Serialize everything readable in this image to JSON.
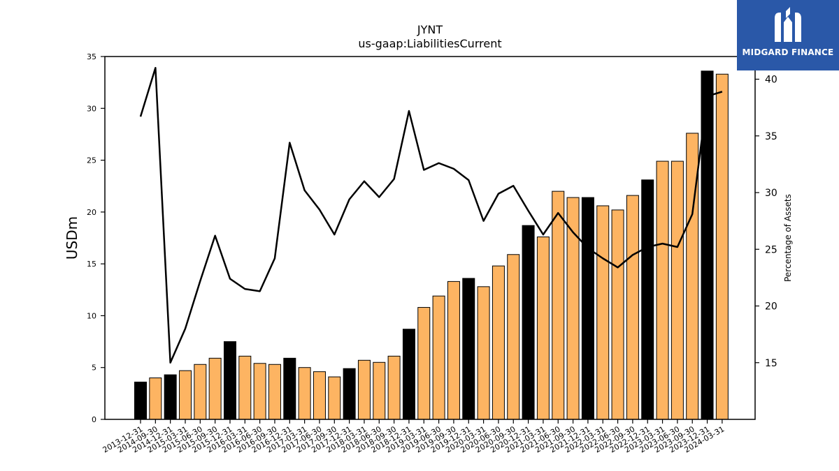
{
  "chart_data": {
    "type": "bar",
    "title": "JYNT",
    "subtitle": "us-gaap:LiabilitiesCurrent",
    "ylabel": "USDm",
    "y2label": "Percentage of Assets",
    "ylim": [
      0,
      35
    ],
    "y2lim": [
      10,
      42
    ],
    "yticks": [
      0,
      5,
      10,
      15,
      20,
      25,
      30,
      35
    ],
    "y2ticks": [
      15,
      20,
      25,
      30,
      35,
      40
    ],
    "categories": [
      "2013-12-31",
      "2014-09-30",
      "2014-12-31",
      "2015-03-31",
      "2015-06-30",
      "2015-09-30",
      "2015-12-31",
      "2016-03-31",
      "2016-06-30",
      "2016-09-30",
      "2016-12-31",
      "2017-03-31",
      "2017-06-30",
      "2017-09-30",
      "2017-12-31",
      "2018-03-31",
      "2018-06-30",
      "2018-09-30",
      "2018-12-31",
      "2019-03-31",
      "2019-06-30",
      "2019-09-30",
      "2019-12-31",
      "2020-03-31",
      "2020-06-30",
      "2020-09-30",
      "2020-12-31",
      "2021-03-31",
      "2021-06-30",
      "2021-09-30",
      "2021-12-31",
      "2022-03-31",
      "2022-06-30",
      "2022-09-30",
      "2022-12-31",
      "2023-03-31",
      "2023-06-30",
      "2023-09-30",
      "2023-12-31",
      "2024-03-31"
    ],
    "series": [
      {
        "type": "bar",
        "values": [
          3.6,
          4.0,
          4.3,
          4.7,
          5.3,
          5.9,
          7.5,
          6.1,
          5.4,
          5.3,
          5.9,
          5.0,
          4.6,
          4.1,
          4.9,
          5.7,
          5.5,
          6.1,
          8.7,
          10.8,
          11.9,
          13.3,
          13.6,
          12.8,
          14.8,
          15.9,
          18.7,
          17.6,
          22.0,
          21.4,
          21.4,
          20.6,
          20.2,
          21.6,
          23.1,
          24.9,
          24.9,
          27.6,
          33.6,
          33.3
        ],
        "annual": [
          true,
          false,
          true,
          false,
          false,
          false,
          true,
          false,
          false,
          false,
          true,
          false,
          false,
          false,
          true,
          false,
          false,
          false,
          true,
          false,
          false,
          false,
          true,
          false,
          false,
          false,
          true,
          false,
          false,
          false,
          true,
          false,
          false,
          false,
          true,
          false,
          false,
          false,
          true,
          false
        ]
      },
      {
        "type": "line",
        "axis": "right",
        "values": [
          36.7,
          41.0,
          15.0,
          18.0,
          22.2,
          26.2,
          22.4,
          21.5,
          21.3,
          24.2,
          34.4,
          30.2,
          28.5,
          26.3,
          29.4,
          31.0,
          29.6,
          31.2,
          37.2,
          32.0,
          32.6,
          32.1,
          31.1,
          27.5,
          29.9,
          30.6,
          28.4,
          26.3,
          28.2,
          26.5,
          25.1,
          24.2,
          23.4,
          24.5,
          25.2,
          25.5,
          25.2,
          28.1,
          38.5,
          38.9
        ]
      }
    ],
    "colors": {
      "annual_bar": "#000000",
      "quarter_bar": "#fdb462",
      "line": "#000000"
    }
  },
  "logo": {
    "text": "MIDGARD FINANCE",
    "bg": "#2a58a8"
  }
}
